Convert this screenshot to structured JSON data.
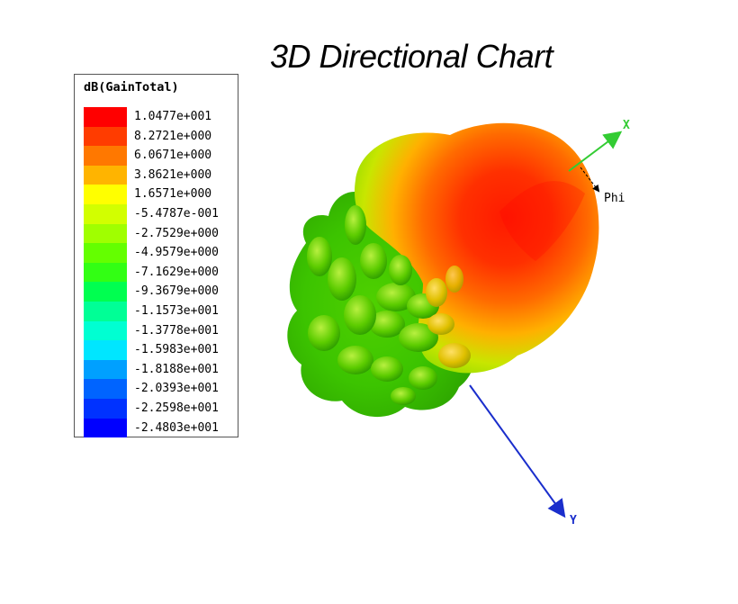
{
  "chart_data": {
    "type": "3d-radiation-pattern",
    "title": "3D Directional Chart",
    "colorbar": {
      "label": "dB(GainTotal)",
      "entries": [
        {
          "value": "1.0477e+001",
          "color": "#ff0000"
        },
        {
          "value": "8.2721e+000",
          "color": "#ff3c00"
        },
        {
          "value": "6.0671e+000",
          "color": "#ff7800"
        },
        {
          "value": "3.8621e+000",
          "color": "#ffb400"
        },
        {
          "value": "1.6571e+000",
          "color": "#ffff00"
        },
        {
          "value": "-5.4787e-001",
          "color": "#d2ff00"
        },
        {
          "value": "-2.7529e+000",
          "color": "#a0ff00"
        },
        {
          "value": "-4.9579e+000",
          "color": "#64ff00"
        },
        {
          "value": "-7.1629e+000",
          "color": "#32ff14"
        },
        {
          "value": "-9.3679e+000",
          "color": "#00ff50"
        },
        {
          "value": "-1.1573e+001",
          "color": "#00ff96"
        },
        {
          "value": "-1.3778e+001",
          "color": "#00ffd2"
        },
        {
          "value": "-1.5983e+001",
          "color": "#00e6ff"
        },
        {
          "value": "-1.8188e+001",
          "color": "#00a0ff"
        },
        {
          "value": "-2.0393e+001",
          "color": "#0064ff"
        },
        {
          "value": "-2.2598e+001",
          "color": "#0032ff"
        },
        {
          "value": "-2.4803e+001",
          "color": "#0000ff"
        }
      ]
    },
    "axes": {
      "x_label": "X",
      "y_label": "Y",
      "phi_label": "Phi",
      "x_color": "#33cc33",
      "y_color": "#1a2ecc"
    }
  }
}
